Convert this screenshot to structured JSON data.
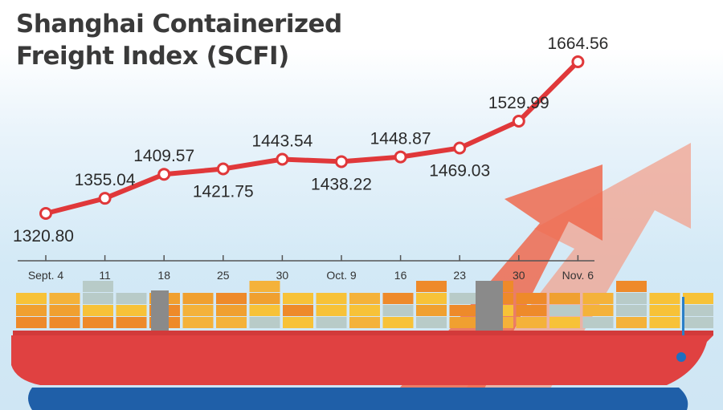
{
  "chart_data": {
    "type": "line",
    "title": "Shanghai Containerized Freight Index (SCFI)",
    "title_lines": [
      "Shanghai Containerized",
      "Freight Index (SCFI)"
    ],
    "categories": [
      "Sept. 4",
      "11",
      "18",
      "25",
      "30",
      "Oct. 9",
      "16",
      "23",
      "30",
      "Nov. 6"
    ],
    "values": [
      1320.8,
      1355.04,
      1409.57,
      1421.75,
      1443.54,
      1438.22,
      1448.87,
      1469.03,
      1529.99,
      1664.56
    ],
    "value_labels": [
      "1320.80",
      "1355.04",
      "1409.57",
      "1421.75",
      "1443.54",
      "1438.22",
      "1448.87",
      "1469.03",
      "1529.99",
      "1664.56"
    ],
    "label_positions": [
      "below",
      "above",
      "above",
      "below",
      "above",
      "below",
      "above",
      "below",
      "above",
      "above"
    ],
    "xlabel": "",
    "ylabel": "",
    "grid": false,
    "legend": "none",
    "line_color": "#e0383a",
    "marker_color": "#ffffff"
  },
  "illustration": {
    "name": "container ship with rising arrows",
    "hull_color": "#e04040",
    "keel_color": "#1f5fa8",
    "arrow_color": "#ef6a4f"
  }
}
